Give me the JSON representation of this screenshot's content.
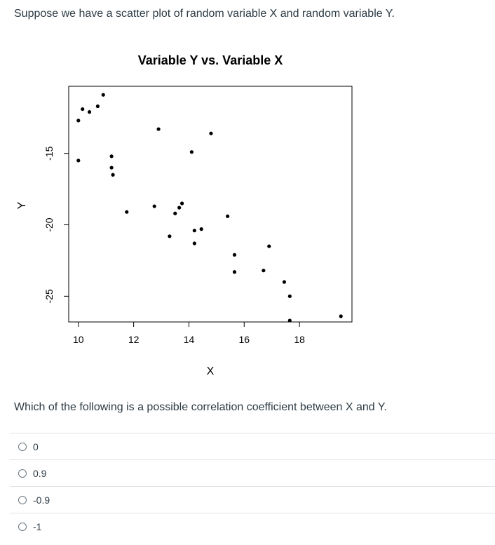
{
  "question": {
    "text": "Suppose we have a scatter plot of random variable X and random variable Y."
  },
  "prompt": {
    "text": "Which of the following is a possible correlation coefficient between X and Y."
  },
  "answers": [
    {
      "label": "0"
    },
    {
      "label": "0.9"
    },
    {
      "label": "-0.9"
    },
    {
      "label": "-1"
    }
  ],
  "chart_data": {
    "type": "scatter",
    "title": "Variable Y vs. Variable X",
    "xlabel": "X",
    "ylabel": "Y",
    "xlim": [
      9.65,
      19.9
    ],
    "ylim": [
      -26.8,
      -10.3
    ],
    "xticks": [
      10,
      12,
      14,
      16,
      18
    ],
    "yticks": [
      -15,
      -20,
      -25
    ],
    "grid": false,
    "legend": "none",
    "points": [
      {
        "x": 10.0,
        "y": -12.7
      },
      {
        "x": 10.15,
        "y": -11.9
      },
      {
        "x": 10.4,
        "y": -12.1
      },
      {
        "x": 10.7,
        "y": -11.7
      },
      {
        "x": 10.9,
        "y": -10.9
      },
      {
        "x": 10.0,
        "y": -15.5
      },
      {
        "x": 11.2,
        "y": -15.2
      },
      {
        "x": 11.2,
        "y": -16.0
      },
      {
        "x": 11.25,
        "y": -16.5
      },
      {
        "x": 11.75,
        "y": -19.1
      },
      {
        "x": 12.75,
        "y": -18.7
      },
      {
        "x": 12.9,
        "y": -13.3
      },
      {
        "x": 13.3,
        "y": -20.8
      },
      {
        "x": 13.5,
        "y": -19.2
      },
      {
        "x": 13.65,
        "y": -18.8
      },
      {
        "x": 13.75,
        "y": -18.5
      },
      {
        "x": 14.1,
        "y": -14.9
      },
      {
        "x": 14.2,
        "y": -20.4
      },
      {
        "x": 14.2,
        "y": -21.3
      },
      {
        "x": 14.45,
        "y": -20.3
      },
      {
        "x": 14.8,
        "y": -13.6
      },
      {
        "x": 15.4,
        "y": -19.4
      },
      {
        "x": 15.65,
        "y": -22.1
      },
      {
        "x": 15.65,
        "y": -23.3
      },
      {
        "x": 16.7,
        "y": -23.2
      },
      {
        "x": 16.9,
        "y": -21.5
      },
      {
        "x": 17.45,
        "y": -24.0
      },
      {
        "x": 17.65,
        "y": -25.0
      },
      {
        "x": 17.65,
        "y": -26.7
      },
      {
        "x": 19.5,
        "y": -26.4
      }
    ]
  }
}
